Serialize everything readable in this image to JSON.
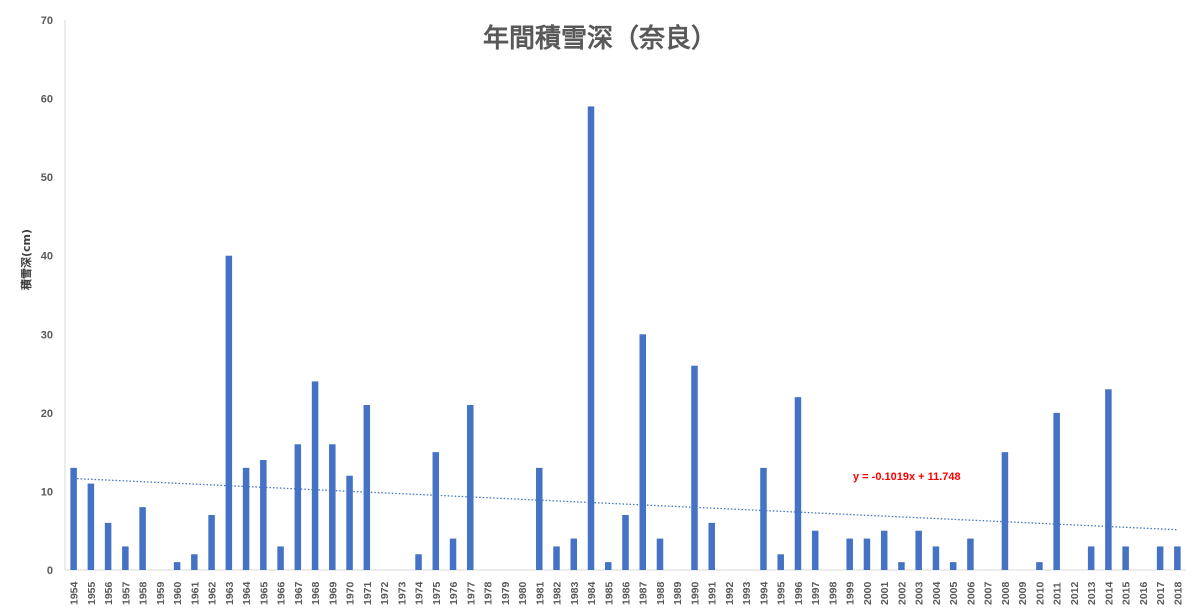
{
  "chart_data": {
    "type": "bar",
    "title": "年間積雪深（奈良）",
    "xlabel": "",
    "ylabel": "積雪深(cm)",
    "ylim": [
      0,
      70
    ],
    "yticks": [
      0,
      10,
      20,
      30,
      40,
      50,
      60,
      70
    ],
    "grid": false,
    "legend": "none",
    "categories": [
      "1954",
      "1955",
      "1956",
      "1957",
      "1958",
      "1959",
      "1960",
      "1961",
      "1962",
      "1963",
      "1964",
      "1965",
      "1966",
      "1967",
      "1968",
      "1969",
      "1970",
      "1971",
      "1972",
      "1973",
      "1974",
      "1975",
      "1976",
      "1977",
      "1978",
      "1979",
      "1980",
      "1981",
      "1982",
      "1983",
      "1984",
      "1985",
      "1986",
      "1987",
      "1988",
      "1989",
      "1990",
      "1991",
      "1992",
      "1993",
      "1994",
      "1995",
      "1996",
      "1997",
      "1998",
      "1999",
      "2000",
      "2001",
      "2002",
      "2003",
      "2004",
      "2005",
      "2006",
      "2007",
      "2008",
      "2009",
      "2010",
      "2011",
      "2012",
      "2013",
      "2014",
      "2015",
      "2016",
      "2017",
      "2018"
    ],
    "values": [
      13,
      11,
      6,
      3,
      8,
      0,
      1,
      2,
      7,
      40,
      13,
      14,
      3,
      16,
      24,
      16,
      12,
      21,
      0,
      0,
      2,
      15,
      4,
      21,
      0,
      0,
      0,
      13,
      3,
      4,
      59,
      1,
      7,
      30,
      4,
      0,
      26,
      6,
      0,
      0,
      13,
      2,
      22,
      5,
      0,
      4,
      4,
      5,
      1,
      5,
      3,
      1,
      4,
      0,
      15,
      0,
      1,
      20,
      0,
      3,
      23,
      3,
      0,
      3,
      3
    ],
    "trendline": {
      "equation": "y = -0.1019x + 11.748",
      "slope": -0.1019,
      "intercept": 11.748,
      "style": "dotted"
    },
    "colors": {
      "bar": "#4472c4",
      "trendline": "#4472c4",
      "equation": "#ff0000",
      "axis": "#d9d9d9",
      "tick_text": "#595959"
    }
  }
}
